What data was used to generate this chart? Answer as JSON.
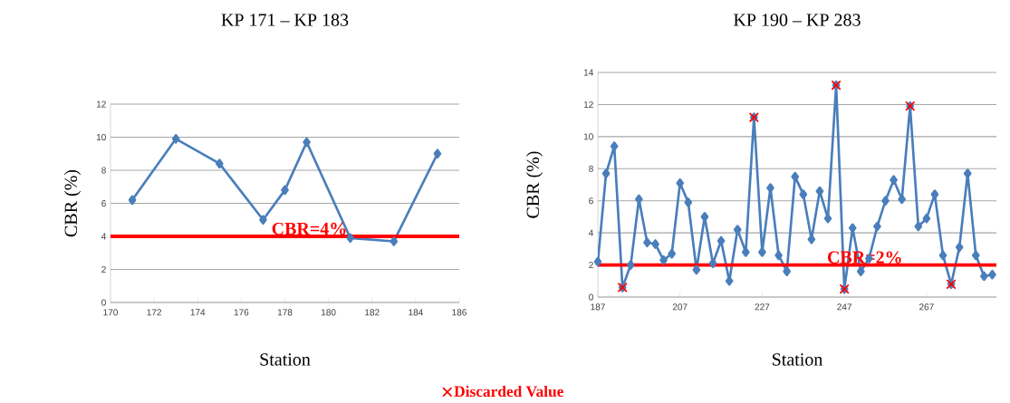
{
  "chart_data": [
    {
      "type": "line",
      "title": "KP 171 – KP 183",
      "xlabel": "Station",
      "ylabel": "CBR (%)",
      "marker": "diamond",
      "grid": "y",
      "x": [
        171,
        173,
        175,
        177,
        178,
        179,
        181,
        183,
        185
      ],
      "series": [
        {
          "color": "#4a7ebb",
          "values": [
            6.2,
            9.9,
            8.4,
            5.0,
            6.8,
            9.7,
            3.9,
            3.7,
            9.0
          ]
        }
      ],
      "xlim": [
        170,
        186
      ],
      "xticks": [
        170,
        172,
        174,
        176,
        178,
        180,
        182,
        184,
        186
      ],
      "ylim": [
        0,
        12
      ],
      "yticks": [
        0,
        2,
        4,
        6,
        8,
        10,
        12
      ],
      "ref_lines": [
        {
          "axis": "y",
          "value": 4,
          "label": "CBR=4%",
          "color": "#ff0000"
        }
      ]
    },
    {
      "type": "line",
      "title": "KP 190 – KP 283",
      "xlabel": "Station",
      "ylabel": "CBR (%)",
      "marker": "diamond",
      "grid": "y",
      "legend": "bottom",
      "x": [
        187,
        189,
        191,
        193,
        195,
        197,
        199,
        201,
        203,
        205,
        207,
        209,
        211,
        213,
        215,
        217,
        219,
        221,
        223,
        225,
        227,
        229,
        231,
        233,
        235,
        237,
        239,
        241,
        243,
        245,
        247,
        249,
        251,
        253,
        255,
        257,
        259,
        261,
        263,
        265,
        267,
        269,
        271,
        273,
        275,
        277,
        279,
        281,
        283
      ],
      "series": [
        {
          "color": "#4a7ebb",
          "values": [
            2.2,
            7.7,
            9.4,
            0.6,
            2.0,
            6.1,
            3.4,
            3.3,
            2.3,
            2.7,
            7.1,
            5.9,
            1.7,
            5.0,
            2.1,
            3.5,
            1.0,
            4.2,
            2.8,
            11.2,
            2.8,
            6.8,
            2.6,
            1.6,
            7.5,
            6.4,
            3.6,
            6.6,
            4.9,
            13.2,
            0.5,
            4.3,
            1.6,
            2.4,
            4.4,
            6.0,
            7.3,
            6.1,
            11.9,
            4.4,
            4.9,
            6.4,
            2.6,
            0.8,
            3.1,
            7.7,
            2.6,
            1.3,
            1.4
          ]
        },
        {
          "name": "Discarded Value",
          "type": "scatter",
          "marker": "cross",
          "color": "#ff0000",
          "x": [
            193,
            225,
            245,
            247,
            263,
            273
          ],
          "values": [
            0.6,
            11.2,
            13.2,
            0.5,
            11.9,
            0.8
          ]
        }
      ],
      "xlim": [
        187,
        284
      ],
      "xticks": [
        187,
        207,
        227,
        247,
        267
      ],
      "ylim": [
        0,
        14
      ],
      "yticks": [
        0,
        2,
        4,
        6,
        8,
        10,
        12,
        14
      ],
      "ref_lines": [
        {
          "axis": "y",
          "value": 2,
          "label": "CBR=2%",
          "color": "#ff0000"
        }
      ]
    }
  ]
}
